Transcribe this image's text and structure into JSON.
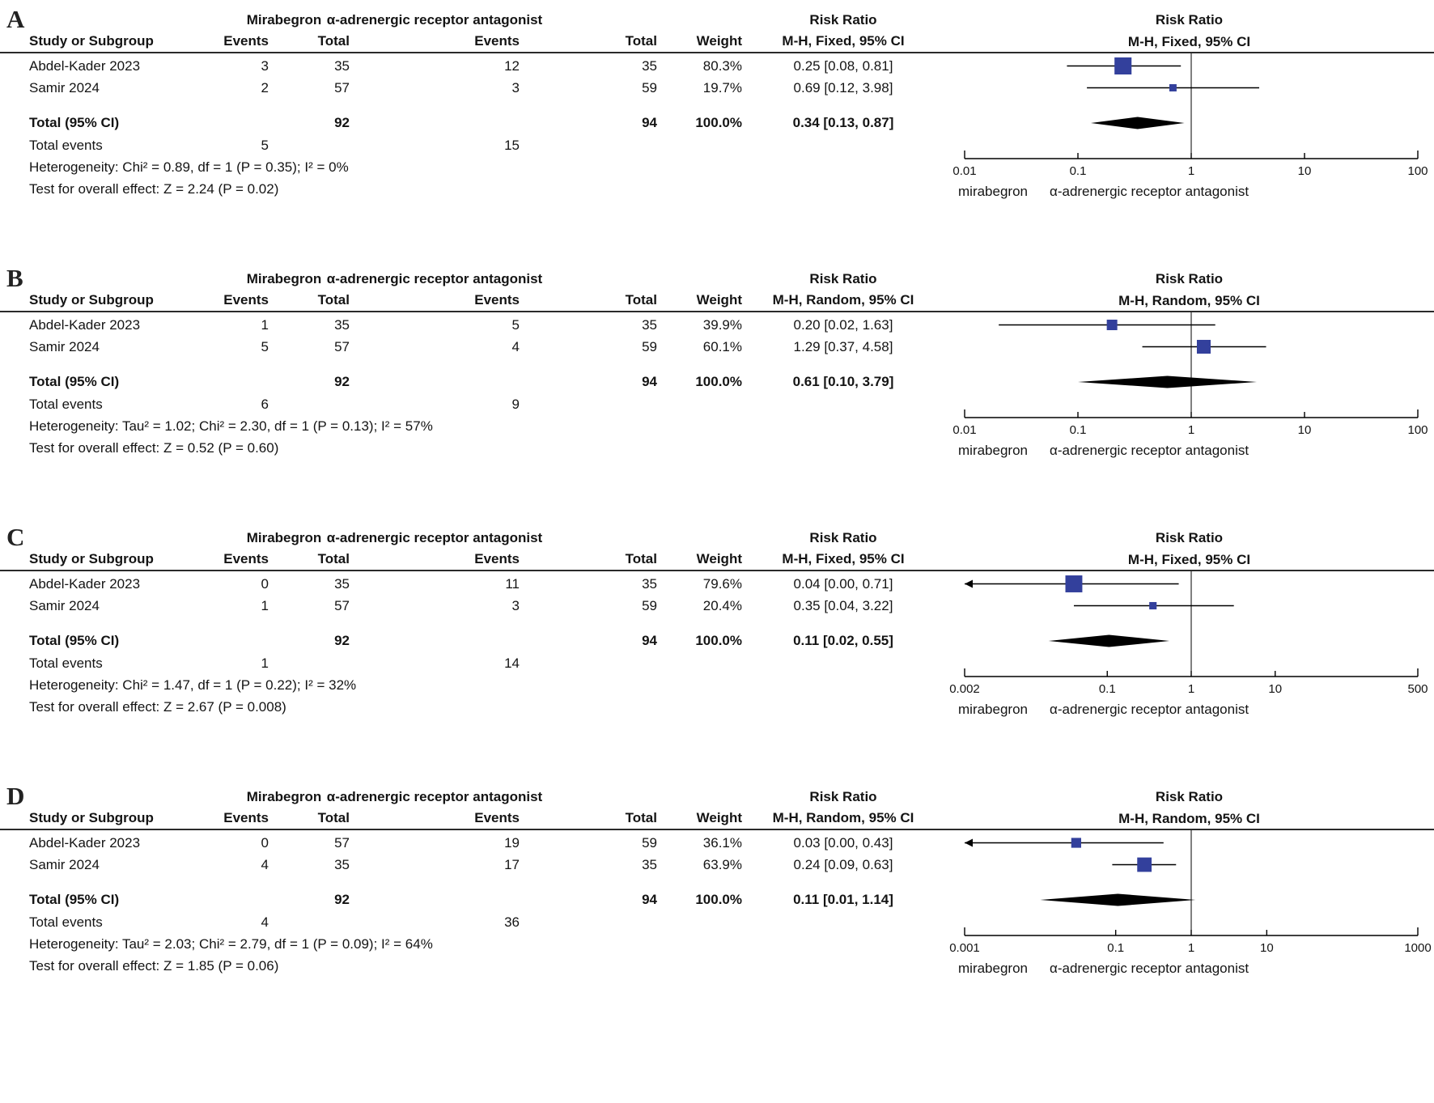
{
  "figure": {
    "marker_color": "#33409c",
    "line_color": "#000000",
    "diamond_color": "#000000"
  },
  "chart_data": [
    {
      "type": "forest",
      "panel_label": "A",
      "group1": "Mirabegron",
      "group2": "α-adrenergic receptor antagonist",
      "effect_label": "Risk Ratio",
      "method_label": "M-H, Fixed, 95% CI",
      "columns": {
        "study": "Study or Subgroup",
        "events": "Events",
        "total": "Total",
        "weight": "Weight"
      },
      "studies": [
        {
          "name": "Abdel-Kader 2023",
          "events1": "3",
          "total1": "35",
          "events2": "12",
          "total2": "35",
          "weight": "80.3%",
          "ci_text": "0.25 [0.08, 0.81]",
          "rr": 0.25,
          "lo": 0.08,
          "hi": 0.81,
          "weight_pct": 80.3
        },
        {
          "name": "Samir 2024",
          "events1": "2",
          "total1": "57",
          "events2": "3",
          "total2": "59",
          "weight": "19.7%",
          "ci_text": "0.69 [0.12, 3.98]",
          "rr": 0.69,
          "lo": 0.12,
          "hi": 3.98,
          "weight_pct": 19.7
        }
      ],
      "total": {
        "label": "Total (95% CI)",
        "total1": "92",
        "total2": "94",
        "weight": "100.0%",
        "ci_text": "0.34 [0.13, 0.87]",
        "rr": 0.34,
        "lo": 0.13,
        "hi": 0.87
      },
      "total_events_label": "Total events",
      "total_events1": "5",
      "total_events2": "15",
      "heterogeneity": "Heterogeneity: Chi² = 0.89, df = 1 (P = 0.35); I² = 0%",
      "overall": "Test for overall effect: Z = 2.24 (P = 0.02)",
      "axis": {
        "min": 0.01,
        "max": 100,
        "tick_values": [
          0.01,
          0.1,
          1,
          10,
          100
        ],
        "tick_labels": [
          "0.01",
          "0.1",
          "1",
          "10",
          "100"
        ],
        "left_label": "mirabegron",
        "right_label": "α-adrenergic receptor antagonist"
      }
    },
    {
      "type": "forest",
      "panel_label": "B",
      "group1": "Mirabegron",
      "group2": "α-adrenergic receptor antagonist",
      "effect_label": "Risk Ratio",
      "method_label": "M-H, Random, 95% CI",
      "columns": {
        "study": "Study or Subgroup",
        "events": "Events",
        "total": "Total",
        "weight": "Weight"
      },
      "studies": [
        {
          "name": "Abdel-Kader 2023",
          "events1": "1",
          "total1": "35",
          "events2": "5",
          "total2": "35",
          "weight": "39.9%",
          "ci_text": "0.20 [0.02, 1.63]",
          "rr": 0.2,
          "lo": 0.02,
          "hi": 1.63,
          "weight_pct": 39.9
        },
        {
          "name": "Samir 2024",
          "events1": "5",
          "total1": "57",
          "events2": "4",
          "total2": "59",
          "weight": "60.1%",
          "ci_text": "1.29 [0.37, 4.58]",
          "rr": 1.29,
          "lo": 0.37,
          "hi": 4.58,
          "weight_pct": 60.1
        }
      ],
      "total": {
        "label": "Total (95% CI)",
        "total1": "92",
        "total2": "94",
        "weight": "100.0%",
        "ci_text": "0.61 [0.10, 3.79]",
        "rr": 0.61,
        "lo": 0.1,
        "hi": 3.79
      },
      "total_events_label": "Total events",
      "total_events1": "6",
      "total_events2": "9",
      "heterogeneity": "Heterogeneity: Tau² = 1.02; Chi² = 2.30, df = 1 (P = 0.13); I² = 57%",
      "overall": "Test for overall effect: Z = 0.52 (P = 0.60)",
      "axis": {
        "min": 0.01,
        "max": 100,
        "tick_values": [
          0.01,
          0.1,
          1,
          10,
          100
        ],
        "tick_labels": [
          "0.01",
          "0.1",
          "1",
          "10",
          "100"
        ],
        "left_label": "mirabegron",
        "right_label": "α-adrenergic receptor antagonist"
      }
    },
    {
      "type": "forest",
      "panel_label": "C",
      "group1": "Mirabegron",
      "group2": "α-adrenergic receptor antagonist",
      "effect_label": "Risk Ratio",
      "method_label": "M-H, Fixed, 95% CI",
      "columns": {
        "study": "Study or Subgroup",
        "events": "Events",
        "total": "Total",
        "weight": "Weight"
      },
      "studies": [
        {
          "name": "Abdel-Kader 2023",
          "events1": "0",
          "total1": "35",
          "events2": "11",
          "total2": "35",
          "weight": "79.6%",
          "ci_text": "0.04 [0.00, 0.71]",
          "rr": 0.04,
          "lo": 0,
          "hi": 0.71,
          "weight_pct": 79.6
        },
        {
          "name": "Samir 2024",
          "events1": "1",
          "total1": "57",
          "events2": "3",
          "total2": "59",
          "weight": "20.4%",
          "ci_text": "0.35 [0.04, 3.22]",
          "rr": 0.35,
          "lo": 0.04,
          "hi": 3.22,
          "weight_pct": 20.4
        }
      ],
      "total": {
        "label": "Total (95% CI)",
        "total1": "92",
        "total2": "94",
        "weight": "100.0%",
        "ci_text": "0.11 [0.02, 0.55]",
        "rr": 0.11,
        "lo": 0.02,
        "hi": 0.55
      },
      "total_events_label": "Total events",
      "total_events1": "1",
      "total_events2": "14",
      "heterogeneity": "Heterogeneity: Chi² = 1.47, df = 1 (P = 0.22); I² = 32%",
      "overall": "Test for overall effect: Z = 2.67 (P = 0.008)",
      "axis": {
        "min": 0.002,
        "max": 500,
        "tick_values": [
          0.002,
          0.1,
          1,
          10,
          500
        ],
        "tick_labels": [
          "0.002",
          "0.1",
          "1",
          "10",
          "500"
        ],
        "left_label": "mirabegron",
        "right_label": "α-adrenergic receptor antagonist"
      }
    },
    {
      "type": "forest",
      "panel_label": "D",
      "group1": "Mirabegron",
      "group2": "α-adrenergic receptor antagonist",
      "effect_label": "Risk Ratio",
      "method_label": "M-H, Random, 95% CI",
      "columns": {
        "study": "Study or Subgroup",
        "events": "Events",
        "total": "Total",
        "weight": "Weight"
      },
      "studies": [
        {
          "name": "Abdel-Kader 2023",
          "events1": "0",
          "total1": "57",
          "events2": "19",
          "total2": "59",
          "weight": "36.1%",
          "ci_text": "0.03 [0.00, 0.43]",
          "rr": 0.03,
          "lo": 0,
          "hi": 0.43,
          "weight_pct": 36.1
        },
        {
          "name": "Samir 2024",
          "events1": "4",
          "total1": "35",
          "events2": "17",
          "total2": "35",
          "weight": "63.9%",
          "ci_text": "0.24 [0.09, 0.63]",
          "rr": 0.24,
          "lo": 0.09,
          "hi": 0.63,
          "weight_pct": 63.9
        }
      ],
      "total": {
        "label": "Total (95% CI)",
        "total1": "92",
        "total2": "94",
        "weight": "100.0%",
        "ci_text": "0.11 [0.01, 1.14]",
        "rr": 0.11,
        "lo": 0.01,
        "hi": 1.14
      },
      "total_events_label": "Total events",
      "total_events1": "4",
      "total_events2": "36",
      "heterogeneity": "Heterogeneity: Tau² = 2.03; Chi² = 2.79, df = 1 (P = 0.09); I² = 64%",
      "overall": "Test for overall effect: Z = 1.85 (P = 0.06)",
      "axis": {
        "min": 0.001,
        "max": 1000,
        "tick_values": [
          0.001,
          0.1,
          1,
          10,
          1000
        ],
        "tick_labels": [
          "0.001",
          "0.1",
          "1",
          "10",
          "1000"
        ],
        "left_label": "mirabegron",
        "right_label": "α-adrenergic receptor antagonist"
      }
    }
  ]
}
